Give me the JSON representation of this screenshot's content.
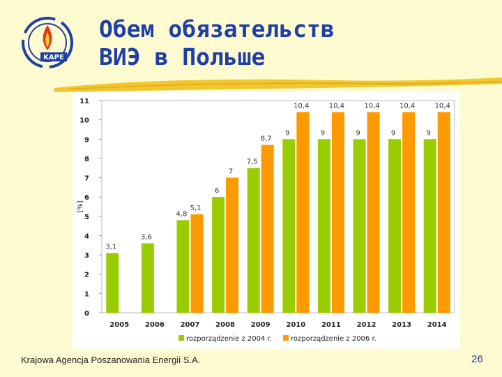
{
  "slide": {
    "title_line1": "Обем обязательств",
    "title_line2": "ВИЭ в Польше",
    "footer": "Krajowa Agencja Poszanowania Energii S.A.",
    "page_number": "26",
    "logo_text": "KAPE"
  },
  "colors": {
    "series1": "#9acd00",
    "series2": "#ff9900",
    "title": "#1f3fa8",
    "background": "#fffbd0"
  },
  "chart_data": {
    "type": "bar",
    "ylabel": "[%]",
    "ylim": [
      0,
      11
    ],
    "yticks": [
      0,
      1,
      2,
      3,
      4,
      5,
      6,
      7,
      8,
      9,
      10,
      11
    ],
    "grid": false,
    "legend_position": "bottom",
    "categories": [
      "2005",
      "2006",
      "2007",
      "2008",
      "2009",
      "2010",
      "2011",
      "2012",
      "2013",
      "2014"
    ],
    "series": [
      {
        "name": "rozporządzenie z 2004 r.",
        "values": [
          3.1,
          3.6,
          4.8,
          6,
          7.5,
          9,
          9,
          9,
          9,
          9
        ],
        "labels": [
          "3,1",
          "3,6",
          "4,8",
          "6",
          "7,5",
          "9",
          "9",
          "9",
          "9",
          "9"
        ]
      },
      {
        "name": "rozporządzenie z 2006 r.",
        "values": [
          null,
          null,
          5.1,
          7,
          8.7,
          10.4,
          10.4,
          10.4,
          10.4,
          10.4
        ],
        "labels": [
          "",
          "",
          "5,1",
          "7",
          "8,7",
          "10,4",
          "10,4",
          "10,4",
          "10,4",
          "10,4"
        ]
      }
    ]
  }
}
